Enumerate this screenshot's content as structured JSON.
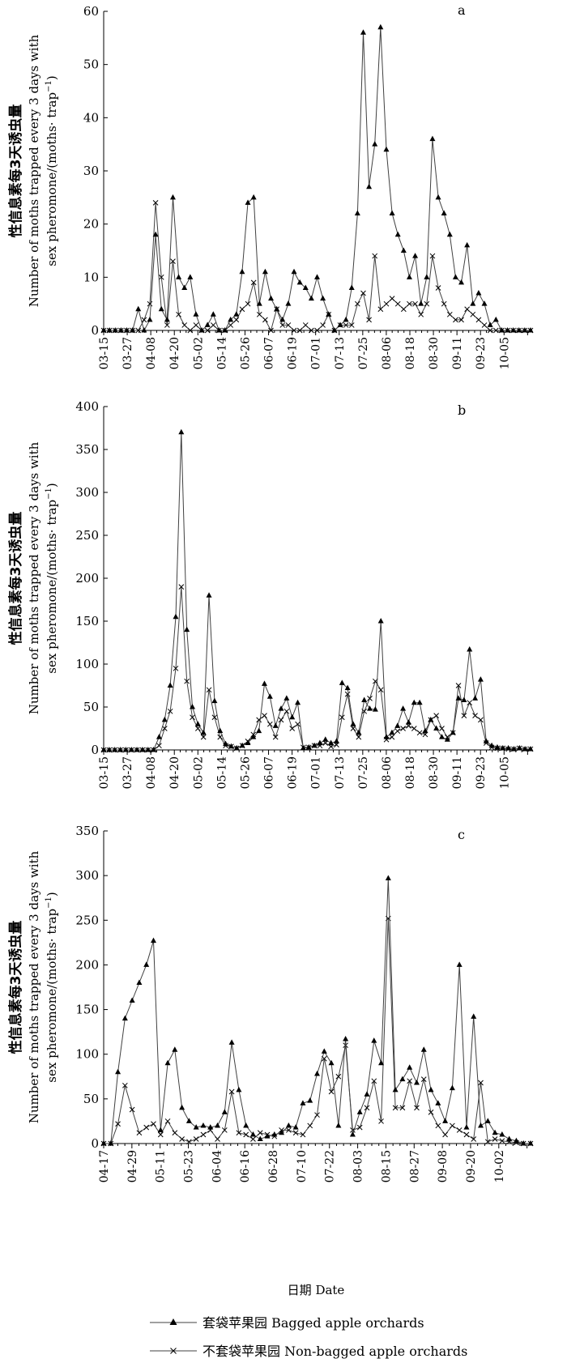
{
  "figure": {
    "xlabel": "日期 Date",
    "ylabel_cn": "性信息素每3天诱虫量",
    "ylabel_en_1": "Number of moths trapped every 3 days with",
    "ylabel_en_2": "sex pheromone/(moths· trap",
    "ylabel_en_sup": "−1",
    "ylabel_en_close": ")",
    "legend": [
      {
        "label": "套袋苹果园  Bagged apple orchards",
        "marker": "triangle"
      },
      {
        "label": "不套袋苹果园  Non-bagged apple orchards",
        "marker": "cross"
      }
    ],
    "colors": {
      "line": "#404040",
      "marker": "#000000",
      "axis": "#000000"
    }
  },
  "chart_data": [
    {
      "type": "line",
      "panel": "a",
      "ylim": [
        0,
        60
      ],
      "yticks": [
        0,
        10,
        20,
        30,
        40,
        50,
        60
      ],
      "xtick_labels": [
        "03-15",
        "03-27",
        "04-08",
        "04-20",
        "05-02",
        "05-14",
        "05-26",
        "06-07",
        "06-19",
        "07-01",
        "07-13",
        "07-25",
        "08-06",
        "08-18",
        "08-30",
        "09-11",
        "09-23",
        "10-05"
      ],
      "series": [
        {
          "name": "Bagged apple orchards",
          "marker": "triangle",
          "values": [
            0,
            0,
            0,
            0,
            0,
            0,
            4,
            0,
            2,
            18,
            4,
            2,
            25,
            10,
            8,
            10,
            3,
            0,
            1,
            3,
            0,
            0,
            2,
            3,
            11,
            24,
            25,
            5,
            11,
            6,
            4,
            2,
            5,
            11,
            9,
            8,
            6,
            10,
            6,
            3,
            0,
            1,
            2,
            8,
            22,
            56,
            27,
            35,
            57,
            34,
            22,
            18,
            15,
            10,
            14,
            5,
            10,
            36,
            25,
            22,
            18,
            10,
            9,
            16,
            5,
            7,
            5,
            1,
            2,
            0,
            0,
            0,
            0,
            0,
            0
          ]
        },
        {
          "name": "Non-bagged apple orchards",
          "marker": "cross",
          "values": [
            0,
            0,
            0,
            0,
            0,
            0,
            0,
            2,
            5,
            24,
            10,
            1,
            13,
            3,
            1,
            0,
            1,
            0,
            0,
            1,
            0,
            0,
            1,
            2,
            4,
            5,
            9,
            3,
            2,
            0,
            4,
            1,
            1,
            0,
            0,
            1,
            0,
            0,
            1,
            3,
            0,
            1,
            1,
            1,
            5,
            7,
            2,
            14,
            4,
            5,
            6,
            5,
            4,
            5,
            5,
            3,
            5,
            14,
            8,
            5,
            3,
            2,
            2,
            4,
            3,
            2,
            1,
            0,
            0,
            0,
            0,
            0,
            0,
            0,
            0
          ]
        }
      ]
    },
    {
      "type": "line",
      "panel": "b",
      "ylim": [
        0,
        400
      ],
      "yticks": [
        0,
        50,
        100,
        150,
        200,
        250,
        300,
        350,
        400
      ],
      "xtick_labels": [
        "03-15",
        "03-27",
        "04-08",
        "04-20",
        "05-02",
        "05-14",
        "05-26",
        "06-07",
        "06-19",
        "07-01",
        "07-13",
        "07-25",
        "08-06",
        "08-18",
        "08-30",
        "09-11",
        "09-23",
        "10-05"
      ],
      "series": [
        {
          "name": "Bagged apple orchards",
          "marker": "triangle",
          "values": [
            0,
            0,
            0,
            0,
            0,
            0,
            0,
            0,
            0,
            0,
            15,
            35,
            75,
            155,
            370,
            140,
            50,
            30,
            20,
            180,
            57,
            22,
            7,
            4,
            2,
            5,
            8,
            15,
            22,
            77,
            62,
            28,
            48,
            60,
            38,
            55,
            2,
            3,
            5,
            8,
            12,
            8,
            10,
            78,
            72,
            30,
            20,
            58,
            48,
            47,
            150,
            15,
            20,
            28,
            48,
            32,
            55,
            55,
            22,
            35,
            25,
            15,
            12,
            20,
            60,
            58,
            117,
            60,
            82,
            10,
            5,
            3,
            2,
            2,
            1,
            2,
            1,
            1
          ]
        },
        {
          "name": "Non-bagged apple orchards",
          "marker": "cross",
          "values": [
            0,
            0,
            0,
            0,
            0,
            0,
            0,
            0,
            0,
            0,
            5,
            25,
            45,
            95,
            190,
            80,
            38,
            25,
            15,
            70,
            38,
            15,
            5,
            4,
            2,
            5,
            10,
            18,
            35,
            40,
            30,
            15,
            35,
            45,
            25,
            30,
            3,
            3,
            5,
            5,
            8,
            4,
            6,
            38,
            65,
            25,
            15,
            45,
            60,
            80,
            70,
            12,
            15,
            22,
            25,
            28,
            25,
            20,
            18,
            35,
            40,
            25,
            15,
            20,
            75,
            40,
            55,
            40,
            35,
            8,
            3,
            2,
            2,
            1,
            1,
            2,
            1,
            1
          ]
        }
      ]
    },
    {
      "type": "line",
      "panel": "c",
      "ylim": [
        0,
        350
      ],
      "yticks": [
        0,
        50,
        100,
        150,
        200,
        250,
        300,
        350
      ],
      "xtick_labels": [
        "04-17",
        "04-29",
        "05-11",
        "05-23",
        "06-04",
        "06-16",
        "06-28",
        "07-10",
        "07-22",
        "08-03",
        "08-15",
        "08-27",
        "09-08",
        "09-20",
        "10-02"
      ],
      "series": [
        {
          "name": "Bagged apple orchards",
          "marker": "triangle",
          "values": [
            0,
            0,
            80,
            140,
            160,
            180,
            200,
            227,
            15,
            90,
            105,
            40,
            25,
            18,
            20,
            18,
            20,
            35,
            113,
            60,
            20,
            10,
            5,
            8,
            10,
            12,
            20,
            18,
            45,
            48,
            78,
            103,
            90,
            20,
            117,
            10,
            35,
            55,
            115,
            90,
            297,
            60,
            72,
            85,
            68,
            105,
            60,
            45,
            25,
            62,
            200,
            18,
            142,
            20,
            25,
            12,
            10,
            5,
            3,
            0,
            0
          ]
        },
        {
          "name": "Non-bagged apple orchards",
          "marker": "cross",
          "values": [
            0,
            0,
            22,
            65,
            38,
            12,
            18,
            22,
            10,
            25,
            12,
            5,
            2,
            5,
            10,
            15,
            5,
            15,
            58,
            12,
            10,
            5,
            12,
            10,
            8,
            15,
            15,
            12,
            10,
            20,
            32,
            95,
            58,
            75,
            110,
            15,
            18,
            40,
            70,
            25,
            252,
            40,
            40,
            70,
            40,
            72,
            35,
            20,
            10,
            20,
            15,
            10,
            5,
            68,
            2,
            5,
            3,
            2,
            1,
            0,
            0
          ]
        }
      ]
    }
  ]
}
